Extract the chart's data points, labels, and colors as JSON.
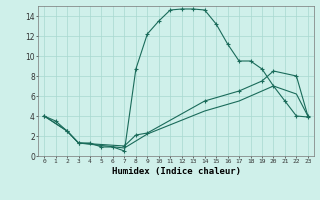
{
  "xlabel": "Humidex (Indice chaleur)",
  "background_color": "#cff0ea",
  "grid_color": "#a8d8d0",
  "line_color": "#1a6b5a",
  "xlim": [
    -0.5,
    23.5
  ],
  "ylim": [
    0,
    15
  ],
  "ytick_values": [
    0,
    2,
    4,
    6,
    8,
    10,
    12,
    14
  ],
  "xtick_labels": [
    "0",
    "1",
    "2",
    "3",
    "4",
    "5",
    "6",
    "7",
    "8",
    "9",
    "10",
    "11",
    "12",
    "13",
    "14",
    "15",
    "16",
    "17",
    "18",
    "19",
    "20",
    "21",
    "22",
    "23"
  ],
  "line1_x": [
    0,
    1,
    2,
    3,
    4,
    5,
    6,
    7,
    8,
    9,
    10,
    11,
    12,
    13,
    14,
    15,
    16,
    17,
    18,
    19,
    20,
    21,
    22,
    23
  ],
  "line1_y": [
    4.0,
    3.5,
    2.5,
    1.3,
    1.3,
    0.9,
    0.9,
    0.5,
    8.7,
    12.2,
    13.5,
    14.6,
    14.7,
    14.7,
    14.6,
    13.2,
    11.2,
    9.5,
    9.5,
    8.7,
    7.0,
    5.5,
    4.0,
    3.9
  ],
  "line2_x": [
    0,
    2,
    3,
    7,
    8,
    9,
    14,
    17,
    19,
    20,
    22,
    23
  ],
  "line2_y": [
    4.0,
    2.5,
    1.3,
    1.0,
    2.1,
    2.3,
    5.5,
    6.5,
    7.5,
    8.5,
    8.0,
    4.0
  ],
  "line3_x": [
    0,
    2,
    3,
    7,
    9,
    14,
    17,
    19,
    20,
    22,
    23
  ],
  "line3_y": [
    4.0,
    2.5,
    1.3,
    0.8,
    2.2,
    4.5,
    5.5,
    6.5,
    7.0,
    6.2,
    4.0
  ]
}
